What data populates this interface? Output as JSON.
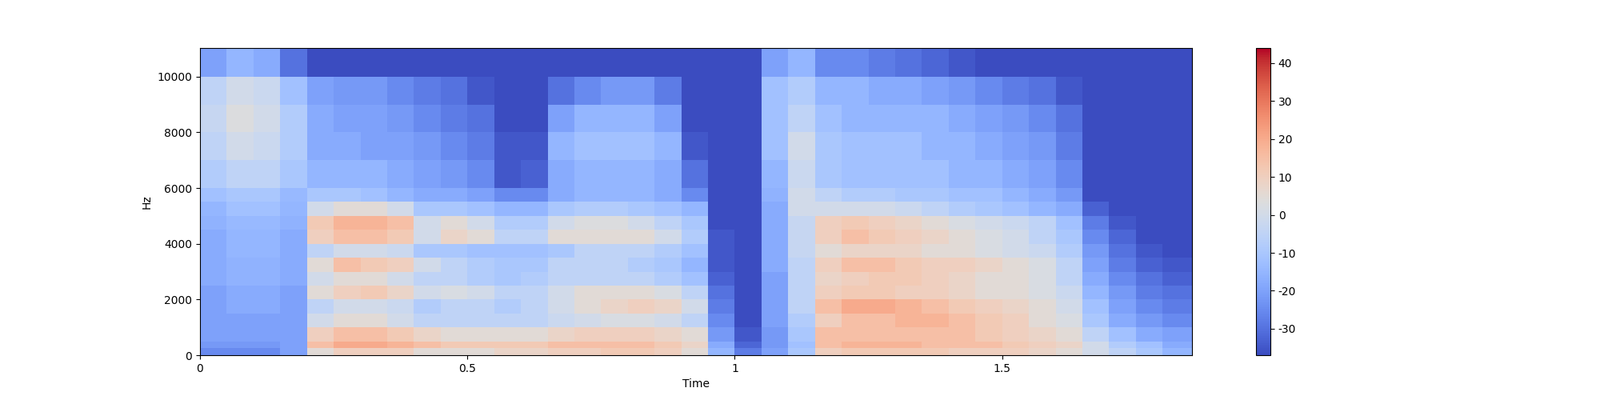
{
  "chart_data": {
    "type": "spectrogram",
    "xlabel": "Time",
    "ylabel": "Hz",
    "xlim": [
      0,
      1.855
    ],
    "ylim": [
      0,
      11025
    ],
    "xticks": [
      0,
      0.5,
      1,
      1.5
    ],
    "yticks": [
      0,
      2000,
      4000,
      6000,
      8000,
      10000
    ],
    "x_edges": [
      0,
      0.05,
      0.1,
      0.15,
      0.2,
      0.25,
      0.3,
      0.35,
      0.4,
      0.45,
      0.5,
      0.55,
      0.6,
      0.65,
      0.7,
      0.75,
      0.8,
      0.85,
      0.9,
      0.95,
      1.0,
      1.05,
      1.1,
      1.15,
      1.2,
      1.25,
      1.3,
      1.35,
      1.4,
      1.45,
      1.5,
      1.55,
      1.6,
      1.65,
      1.7,
      1.75,
      1.8,
      1.855
    ],
    "y_edges": [
      0,
      250,
      500,
      1000,
      1500,
      2000,
      2500,
      3000,
      3500,
      4000,
      4500,
      5000,
      5500,
      6000,
      7000,
      8000,
      9000,
      10000,
      11025
    ],
    "cells_by_time": [
      [
        -25,
        -22,
        -20,
        -20,
        -20,
        -20,
        -18,
        -18,
        -18,
        -18,
        -16,
        -15,
        -12,
        -8,
        -5,
        -3,
        -5,
        -20
      ],
      [
        -25,
        -22,
        -20,
        -20,
        -18,
        -18,
        -16,
        -16,
        -15,
        -15,
        -14,
        -12,
        -10,
        -5,
        0,
        3,
        0,
        -15
      ],
      [
        -25,
        -22,
        -20,
        -20,
        -18,
        -18,
        -16,
        -16,
        -15,
        -15,
        -14,
        -12,
        -10,
        -5,
        -2,
        0,
        -2,
        -18
      ],
      [
        -20,
        -20,
        -20,
        -20,
        -20,
        -20,
        -18,
        -18,
        -18,
        -18,
        -16,
        -15,
        -14,
        -10,
        -8,
        -8,
        -12,
        -30
      ],
      [
        5,
        15,
        10,
        0,
        -5,
        5,
        0,
        5,
        -5,
        10,
        12,
        0,
        -10,
        -15,
        -18,
        -18,
        -20,
        -37
      ],
      [
        10,
        20,
        15,
        5,
        0,
        10,
        5,
        15,
        0,
        15,
        18,
        5,
        -10,
        -15,
        -18,
        -20,
        -22,
        -37
      ],
      [
        10,
        20,
        15,
        5,
        0,
        12,
        5,
        12,
        0,
        15,
        18,
        5,
        -12,
        -15,
        -20,
        -20,
        -22,
        -37
      ],
      [
        10,
        18,
        12,
        0,
        -2,
        8,
        0,
        10,
        -2,
        12,
        15,
        0,
        -15,
        -18,
        -20,
        -22,
        -25,
        -37
      ],
      [
        5,
        15,
        8,
        -5,
        -8,
        0,
        -5,
        0,
        -10,
        0,
        0,
        -10,
        -18,
        -20,
        -22,
        -25,
        -28,
        -37
      ],
      [
        5,
        12,
        5,
        -5,
        -5,
        2,
        -5,
        -5,
        -10,
        8,
        5,
        -10,
        -18,
        -22,
        -25,
        -28,
        -30,
        -37
      ],
      [
        5,
        12,
        5,
        -5,
        -5,
        0,
        -8,
        -8,
        -12,
        5,
        0,
        -12,
        -20,
        -25,
        -28,
        -30,
        -35,
        -37
      ],
      [
        8,
        12,
        5,
        -5,
        -8,
        -5,
        -10,
        -10,
        -12,
        -5,
        -8,
        -15,
        -25,
        -35,
        -35,
        -37,
        -37,
        -37
      ],
      [
        8,
        12,
        5,
        -5,
        -5,
        -5,
        -8,
        -10,
        -12,
        -5,
        -8,
        -15,
        -25,
        -33,
        -35,
        -37,
        -37,
        -37
      ],
      [
        10,
        15,
        8,
        -2,
        0,
        0,
        -5,
        -5,
        -10,
        5,
        0,
        -10,
        -18,
        -18,
        -15,
        -20,
        -30,
        -37
      ],
      [
        10,
        15,
        10,
        0,
        5,
        5,
        -5,
        -5,
        -5,
        5,
        3,
        -8,
        -15,
        -15,
        -12,
        -15,
        -25,
        -37
      ],
      [
        12,
        15,
        10,
        2,
        8,
        5,
        -5,
        -5,
        -5,
        5,
        3,
        -8,
        -15,
        -15,
        -12,
        -15,
        -22,
        -37
      ],
      [
        12,
        15,
        10,
        2,
        10,
        5,
        -5,
        -8,
        -5,
        5,
        0,
        -10,
        -15,
        -15,
        -12,
        -15,
        -22,
        -37
      ],
      [
        10,
        12,
        8,
        0,
        8,
        2,
        -8,
        -10,
        -8,
        0,
        -5,
        -12,
        -18,
        -18,
        -15,
        -20,
        -28,
        -37
      ],
      [
        5,
        8,
        5,
        -5,
        0,
        -5,
        -12,
        -15,
        -12,
        -8,
        -10,
        -15,
        -25,
        -30,
        -35,
        -37,
        -37,
        -37
      ],
      [
        -15,
        -18,
        -22,
        -25,
        -28,
        -30,
        -33,
        -35,
        -35,
        -35,
        -37,
        -37,
        -37,
        -37,
        -37,
        -37,
        -37,
        -37
      ],
      [
        -28,
        -32,
        -35,
        -37,
        -37,
        -37,
        -37,
        -37,
        -37,
        -37,
        -37,
        -37,
        -37,
        -37,
        -37,
        -37,
        -37,
        -37
      ],
      [
        -20,
        -22,
        -22,
        -20,
        -20,
        -20,
        -20,
        -18,
        -18,
        -18,
        -18,
        -18,
        -16,
        -15,
        -12,
        -12,
        -12,
        -20
      ],
      [
        -10,
        -12,
        -10,
        -8,
        -5,
        -5,
        -5,
        -5,
        -3,
        -3,
        -3,
        0,
        0,
        -2,
        0,
        -5,
        -8,
        -15
      ],
      [
        10,
        15,
        15,
        10,
        15,
        10,
        8,
        10,
        5,
        10,
        10,
        0,
        -5,
        -10,
        -10,
        -12,
        -15,
        -25
      ],
      [
        12,
        18,
        15,
        15,
        20,
        12,
        10,
        15,
        8,
        15,
        12,
        0,
        -8,
        -12,
        -12,
        -15,
        -15,
        -25
      ],
      [
        12,
        18,
        15,
        15,
        20,
        12,
        12,
        15,
        8,
        12,
        10,
        0,
        -8,
        -12,
        -12,
        -15,
        -18,
        -28
      ],
      [
        12,
        18,
        15,
        18,
        18,
        10,
        12,
        12,
        8,
        10,
        8,
        -2,
        -10,
        -12,
        -12,
        -15,
        -18,
        -30
      ],
      [
        12,
        15,
        15,
        18,
        15,
        10,
        10,
        10,
        5,
        8,
        5,
        -5,
        -10,
        -12,
        -15,
        -15,
        -20,
        -32
      ],
      [
        10,
        15,
        15,
        15,
        12,
        8,
        8,
        10,
        5,
        5,
        2,
        -8,
        -12,
        -15,
        -15,
        -18,
        -22,
        -35
      ],
      [
        10,
        15,
        12,
        12,
        10,
        5,
        5,
        8,
        2,
        2,
        0,
        -10,
        -12,
        -15,
        -18,
        -20,
        -25,
        -37
      ],
      [
        10,
        12,
        10,
        10,
        8,
        5,
        5,
        5,
        0,
        0,
        -2,
        -12,
        -15,
        -18,
        -20,
        -22,
        -28,
        -37
      ],
      [
        8,
        10,
        8,
        5,
        5,
        2,
        2,
        2,
        -2,
        -5,
        -5,
        -15,
        -18,
        -20,
        -22,
        -25,
        -30,
        -37
      ],
      [
        5,
        8,
        5,
        2,
        0,
        -2,
        -5,
        -5,
        -8,
        -10,
        -12,
        -18,
        -22,
        -25,
        -28,
        -30,
        -35,
        -37
      ],
      [
        0,
        0,
        -5,
        -10,
        -12,
        -15,
        -18,
        -20,
        -22,
        -25,
        -28,
        -33,
        -37,
        -37,
        -37,
        -37,
        -37,
        -37
      ],
      [
        -5,
        -8,
        -12,
        -18,
        -20,
        -22,
        -25,
        -28,
        -30,
        -32,
        -35,
        -37,
        -37,
        -37,
        -37,
        -37,
        -37,
        -37
      ],
      [
        -10,
        -12,
        -18,
        -22,
        -25,
        -28,
        -30,
        -33,
        -35,
        -37,
        -37,
        -37,
        -37,
        -37,
        -37,
        -37,
        -37,
        -37
      ],
      [
        -15,
        -18,
        -20,
        -25,
        -28,
        -30,
        -33,
        -35,
        -37,
        -37,
        -37,
        -37,
        -37,
        -37,
        -37,
        -37,
        -37,
        -37
      ]
    ],
    "colorbar_range": [
      -37,
      44
    ],
    "colorbar_ticks": [
      -30,
      -20,
      -10,
      0,
      10,
      20,
      30,
      40
    ]
  }
}
